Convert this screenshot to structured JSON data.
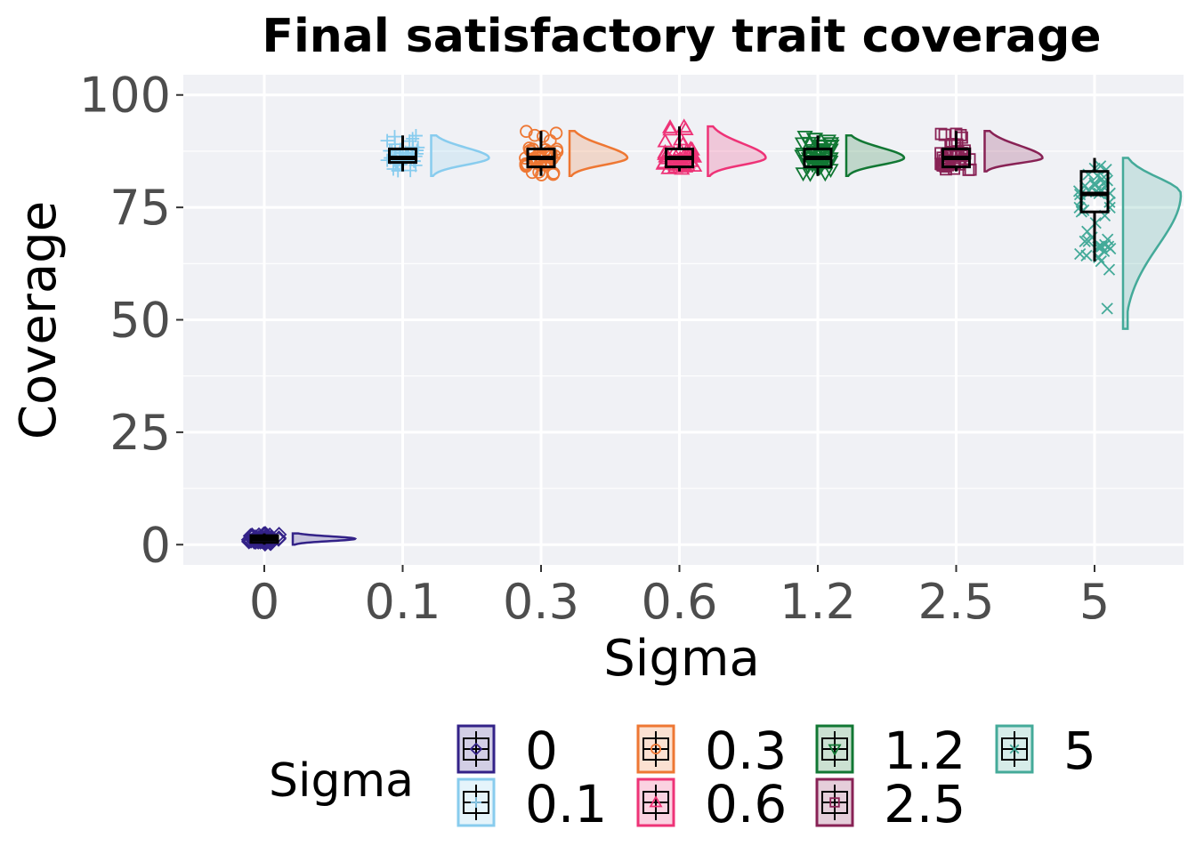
{
  "chart_data": {
    "type": "raincloud",
    "title": "Final satisfactory trait coverage",
    "xlabel": "Sigma",
    "ylabel": "Coverage",
    "ylim": [
      -4.5,
      104.5
    ],
    "yticks": [
      0,
      25,
      50,
      75,
      100
    ],
    "categories": [
      "0",
      "0.1",
      "0.3",
      "0.6",
      "1.2",
      "2.5",
      "5"
    ],
    "grid": true,
    "legend": {
      "title": "Sigma",
      "position": "bottom",
      "entries": [
        "0",
        "0.1",
        "0.3",
        "0.6",
        "1.2",
        "2.5",
        "5"
      ]
    },
    "series": [
      {
        "name": "0",
        "color": "#332288",
        "shape": "diamond",
        "box": {
          "min": 0,
          "q1": 0.5,
          "median": 1.3,
          "q3": 2,
          "max": 2.5
        },
        "range": [
          0,
          2.5
        ]
      },
      {
        "name": "0.1",
        "color": "#88CCEE",
        "shape": "plus",
        "box": {
          "min": 83,
          "q1": 85,
          "median": 86,
          "q3": 88,
          "max": 91
        },
        "range": [
          82,
          91
        ]
      },
      {
        "name": "0.3",
        "color": "#EE7733",
        "shape": "circle",
        "box": {
          "min": 82,
          "q1": 84,
          "median": 86,
          "q3": 88,
          "max": 92
        },
        "range": [
          82,
          92
        ]
      },
      {
        "name": "0.6",
        "color": "#EE3377",
        "shape": "triangle-up",
        "box": {
          "min": 83,
          "q1": 84,
          "median": 86,
          "q3": 88,
          "max": 93
        },
        "range": [
          82,
          93
        ]
      },
      {
        "name": "1.2",
        "color": "#117733",
        "shape": "triangle-down",
        "box": {
          "min": 82,
          "q1": 84,
          "median": 86,
          "q3": 88,
          "max": 91
        },
        "range": [
          82,
          91
        ]
      },
      {
        "name": "2.5",
        "color": "#882255",
        "shape": "square",
        "box": {
          "min": 83,
          "q1": 84,
          "median": 86,
          "q3": 88,
          "max": 92
        },
        "range": [
          83,
          92
        ]
      },
      {
        "name": "5",
        "color": "#44AA99",
        "shape": "cross",
        "box": {
          "min": 63,
          "q1": 74,
          "median": 78,
          "q3": 83,
          "max": 86
        },
        "range": [
          48,
          86
        ]
      }
    ]
  }
}
